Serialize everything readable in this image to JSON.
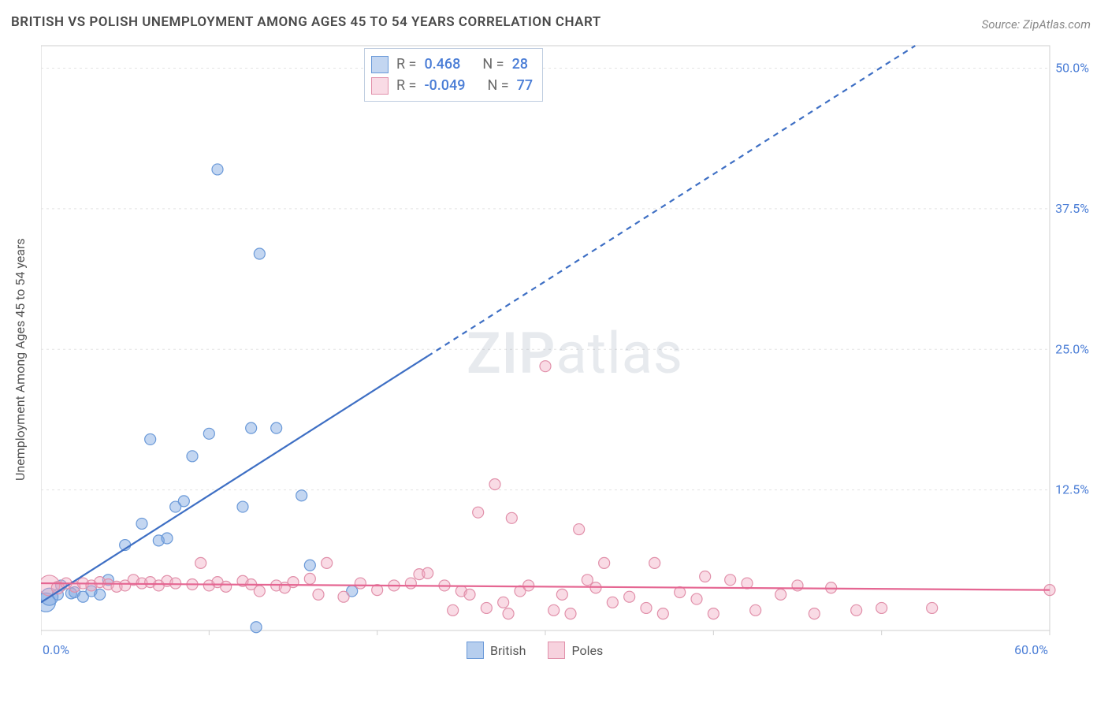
{
  "title": "BRITISH VS POLISH UNEMPLOYMENT AMONG AGES 45 TO 54 YEARS CORRELATION CHART",
  "source": "Source: ZipAtlas.com",
  "y_axis_label": "Unemployment Among Ages 45 to 54 years",
  "watermark": {
    "bold": "ZIP",
    "light": "atlas"
  },
  "chart": {
    "type": "scatter",
    "background_color": "#ffffff",
    "grid_color": "#e3e3e3",
    "axis_color": "#cfcfcf",
    "xlim": [
      0,
      60
    ],
    "ylim": [
      0,
      52
    ],
    "x_ticks": [
      0,
      10,
      20,
      30,
      40,
      50,
      60
    ],
    "y_ticks": [
      12.5,
      25.0,
      37.5,
      50.0
    ],
    "x_tick_labels": [
      "0.0%",
      "",
      "",
      "",
      "",
      "",
      "60.0%"
    ],
    "y_tick_labels": [
      "12.5%",
      "25.0%",
      "37.5%",
      "50.0%"
    ],
    "tick_label_color": "#4a7dd6",
    "tick_label_fontsize": 16,
    "series": [
      {
        "name": "British",
        "color_fill": "rgba(122,165,224,0.45)",
        "color_stroke": "#6a99d8",
        "marker_radius": 7,
        "trend_color": "#3e6fc4",
        "trend_width": 2.2,
        "trend_dash_from_x": 23,
        "r_value": "0.468",
        "n_value": "28",
        "points": [
          [
            0.3,
            2.5,
            12
          ],
          [
            0.5,
            3.0,
            11
          ],
          [
            1.0,
            3.2,
            7
          ],
          [
            1.2,
            4.0,
            7
          ],
          [
            1.8,
            3.3,
            7
          ],
          [
            2.0,
            3.4,
            7
          ],
          [
            2.5,
            3.0,
            7
          ],
          [
            3.0,
            3.5,
            7
          ],
          [
            3.5,
            3.2,
            7
          ],
          [
            4.0,
            4.5,
            7
          ],
          [
            5.0,
            7.6,
            7
          ],
          [
            6.0,
            9.5,
            7
          ],
          [
            6.5,
            17.0,
            7
          ],
          [
            7.0,
            8.0,
            7
          ],
          [
            7.5,
            8.2,
            7
          ],
          [
            8.0,
            11.0,
            7
          ],
          [
            8.5,
            11.5,
            7
          ],
          [
            9.0,
            15.5,
            7
          ],
          [
            10.0,
            17.5,
            7
          ],
          [
            10.5,
            41.0,
            7
          ],
          [
            12.0,
            11.0,
            7
          ],
          [
            12.5,
            18.0,
            7
          ],
          [
            12.8,
            0.3,
            7
          ],
          [
            13.0,
            33.5,
            7
          ],
          [
            14.0,
            18.0,
            7
          ],
          [
            15.5,
            12.0,
            7
          ],
          [
            16.0,
            5.8,
            7
          ],
          [
            18.5,
            3.5,
            7
          ]
        ],
        "trend_line": {
          "x1": 0,
          "y1": 2.5,
          "x2": 52,
          "y2": 52
        }
      },
      {
        "name": "Poles",
        "color_fill": "rgba(240,165,190,0.40)",
        "color_stroke": "#e190aa",
        "marker_radius": 7,
        "trend_color": "#e56692",
        "trend_width": 2.2,
        "r_value": "-0.049",
        "n_value": "77",
        "points": [
          [
            0.5,
            4.0,
            13
          ],
          [
            1.0,
            3.8,
            8
          ],
          [
            1.5,
            4.2,
            7
          ],
          [
            2.0,
            3.9,
            7
          ],
          [
            2.5,
            4.2,
            7
          ],
          [
            3.0,
            4.0,
            7
          ],
          [
            3.5,
            4.3,
            7
          ],
          [
            4.0,
            4.1,
            7
          ],
          [
            4.5,
            3.9,
            7
          ],
          [
            5.0,
            4.0,
            7
          ],
          [
            5.5,
            4.5,
            7
          ],
          [
            6.0,
            4.2,
            7
          ],
          [
            6.5,
            4.3,
            7
          ],
          [
            7.0,
            4.0,
            7
          ],
          [
            7.5,
            4.4,
            7
          ],
          [
            8.0,
            4.2,
            7
          ],
          [
            9.0,
            4.1,
            7
          ],
          [
            9.5,
            6.0,
            7
          ],
          [
            10.0,
            4.0,
            7
          ],
          [
            10.5,
            4.3,
            7
          ],
          [
            11.0,
            3.9,
            7
          ],
          [
            12.0,
            4.4,
            7
          ],
          [
            12.5,
            4.1,
            7
          ],
          [
            13.0,
            3.5,
            7
          ],
          [
            14.0,
            4.0,
            7
          ],
          [
            14.5,
            3.8,
            7
          ],
          [
            15.0,
            4.3,
            7
          ],
          [
            16.0,
            4.6,
            7
          ],
          [
            16.5,
            3.2,
            7
          ],
          [
            17.0,
            6.0,
            7
          ],
          [
            18.0,
            3.0,
            7
          ],
          [
            19.0,
            4.2,
            7
          ],
          [
            20.0,
            3.6,
            7
          ],
          [
            21.0,
            4.0,
            7
          ],
          [
            22.0,
            4.2,
            7
          ],
          [
            22.5,
            5.0,
            7
          ],
          [
            23.0,
            5.1,
            7
          ],
          [
            24.0,
            4.0,
            7
          ],
          [
            24.5,
            1.8,
            7
          ],
          [
            25.0,
            3.5,
            7
          ],
          [
            25.5,
            3.2,
            7
          ],
          [
            26.0,
            10.5,
            7
          ],
          [
            26.5,
            2.0,
            7
          ],
          [
            27.0,
            13.0,
            7
          ],
          [
            27.5,
            2.5,
            7
          ],
          [
            27.8,
            1.5,
            7
          ],
          [
            28.0,
            10.0,
            7
          ],
          [
            28.5,
            3.5,
            7
          ],
          [
            29.0,
            4.0,
            7
          ],
          [
            30.0,
            23.5,
            7
          ],
          [
            30.5,
            1.8,
            7
          ],
          [
            31.0,
            3.2,
            7
          ],
          [
            31.5,
            1.5,
            7
          ],
          [
            32.0,
            9.0,
            7
          ],
          [
            32.5,
            4.5,
            7
          ],
          [
            33.0,
            3.8,
            7
          ],
          [
            33.5,
            6.0,
            7
          ],
          [
            34.0,
            2.5,
            7
          ],
          [
            35.0,
            3.0,
            7
          ],
          [
            36.0,
            2.0,
            7
          ],
          [
            36.5,
            6.0,
            7
          ],
          [
            37.0,
            1.5,
            7
          ],
          [
            38.0,
            3.4,
            7
          ],
          [
            39.0,
            2.8,
            7
          ],
          [
            39.5,
            4.8,
            7
          ],
          [
            40.0,
            1.5,
            7
          ],
          [
            41.0,
            4.5,
            7
          ],
          [
            42.0,
            4.2,
            7
          ],
          [
            42.5,
            1.8,
            7
          ],
          [
            44.0,
            3.2,
            7
          ],
          [
            45.0,
            4.0,
            7
          ],
          [
            46.0,
            1.5,
            7
          ],
          [
            47.0,
            3.8,
            7
          ],
          [
            48.5,
            1.8,
            7
          ],
          [
            50.0,
            2.0,
            7
          ],
          [
            53.0,
            2.0,
            7
          ],
          [
            60.0,
            3.6,
            7
          ]
        ],
        "trend_line": {
          "x1": 0,
          "y1": 4.2,
          "x2": 60,
          "y2": 3.6
        }
      }
    ]
  },
  "info_box": {
    "r_label": "R =",
    "n_label": "N =",
    "r_color": "#4a7dd6",
    "n_color": "#4a7dd6"
  },
  "legend": {
    "items": [
      {
        "label": "British",
        "fill": "rgba(122,165,224,0.55)",
        "stroke": "#6a99d8"
      },
      {
        "label": "Poles",
        "fill": "rgba(240,165,190,0.50)",
        "stroke": "#e190aa"
      }
    ]
  }
}
